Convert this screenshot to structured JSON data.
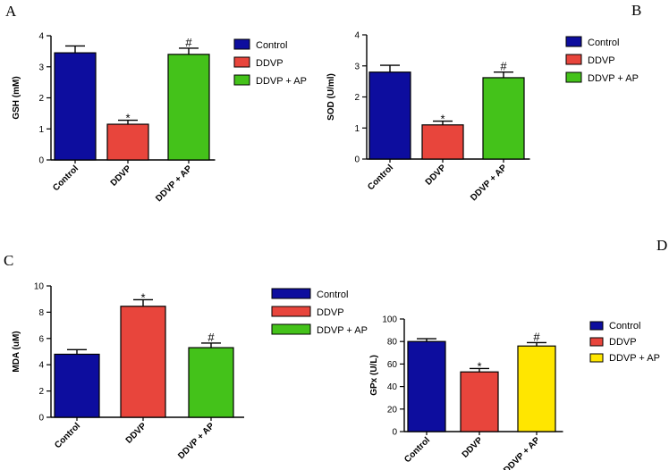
{
  "chart_data": [
    {
      "panel": "A",
      "type": "bar",
      "categories": [
        "Control",
        "DDVP",
        "DDVP + AP"
      ],
      "values": [
        3.45,
        1.15,
        3.4
      ],
      "errors": [
        0.22,
        0.13,
        0.2
      ],
      "colors": [
        "#0d0d9e",
        "#e8453c",
        "#44c21a"
      ],
      "annotations": [
        "",
        "*",
        "#"
      ],
      "ylabel": "GSH (mM)",
      "ylim": [
        0,
        4
      ],
      "yticks": [
        0,
        1,
        2,
        3,
        4
      ],
      "legend": [
        "Control",
        "DDVP",
        "DDVP + AP"
      ],
      "legend_position": "right"
    },
    {
      "panel": "B",
      "type": "bar",
      "categories": [
        "Control",
        "DDVP",
        "DDVP + AP"
      ],
      "values": [
        2.8,
        1.1,
        2.62
      ],
      "errors": [
        0.22,
        0.12,
        0.18
      ],
      "colors": [
        "#0d0d9e",
        "#e8453c",
        "#44c21a"
      ],
      "annotations": [
        "",
        "*",
        "#"
      ],
      "ylabel": "SOD (U/ml)",
      "ylim": [
        0,
        4
      ],
      "yticks": [
        0,
        1,
        2,
        3,
        4
      ],
      "legend": [
        "Control",
        "DDVP",
        "DDVP + AP"
      ],
      "legend_position": "right"
    },
    {
      "panel": "C",
      "type": "bar",
      "categories": [
        "Control",
        "DDVP",
        "DDVP + AP"
      ],
      "values": [
        4.8,
        8.45,
        5.3
      ],
      "errors": [
        0.35,
        0.5,
        0.35
      ],
      "colors": [
        "#0d0d9e",
        "#e8453c",
        "#44c21a"
      ],
      "annotations": [
        "",
        "*",
        "#"
      ],
      "ylabel": "MDA (uM)",
      "ylim": [
        0,
        10
      ],
      "yticks": [
        0,
        2,
        4,
        6,
        8,
        10
      ],
      "legend": [
        "Control",
        "DDVP",
        "DDVP + AP"
      ],
      "legend_position": "right"
    },
    {
      "panel": "D",
      "type": "bar",
      "categories": [
        "Control",
        "DDVP",
        "DDVP + AP"
      ],
      "values": [
        80,
        53,
        76
      ],
      "errors": [
        2.5,
        3,
        3
      ],
      "colors": [
        "#0d0d9e",
        "#e8453c",
        "#ffe600"
      ],
      "annotations": [
        "",
        "*",
        "#"
      ],
      "ylabel": "GPx (U/L)",
      "ylim": [
        0,
        100
      ],
      "yticks": [
        0,
        20,
        40,
        60,
        80,
        100
      ],
      "legend": [
        "Control",
        "DDVP",
        "DDVP + AP"
      ],
      "legend_position": "right"
    }
  ]
}
